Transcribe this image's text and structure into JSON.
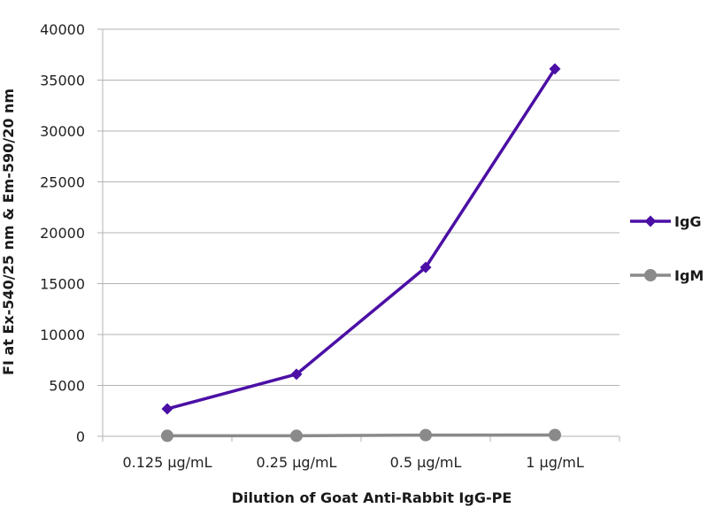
{
  "chart_data": {
    "type": "line",
    "title": "",
    "xlabel": "Dilution of Goat Anti-Rabbit IgG-PE",
    "ylabel": "FI at Ex-540/25 nm & Em-590/20 nm",
    "categories": [
      "0.125 µg/mL",
      "0.25 µg/mL",
      "0.5 µg/mL",
      "1 µg/mL"
    ],
    "ylim": [
      0,
      40000
    ],
    "yticks": [
      0,
      5000,
      10000,
      15000,
      20000,
      25000,
      30000,
      35000,
      40000
    ],
    "grid": true,
    "legend_position": "right",
    "series": [
      {
        "name": "IgG",
        "values": [
          2700,
          6100,
          16600,
          36100
        ],
        "color": "#4b0fa5",
        "marker": "diamond"
      },
      {
        "name": "IgM",
        "values": [
          50,
          50,
          120,
          130
        ],
        "color": "#8a8a8a",
        "marker": "circle"
      }
    ]
  }
}
